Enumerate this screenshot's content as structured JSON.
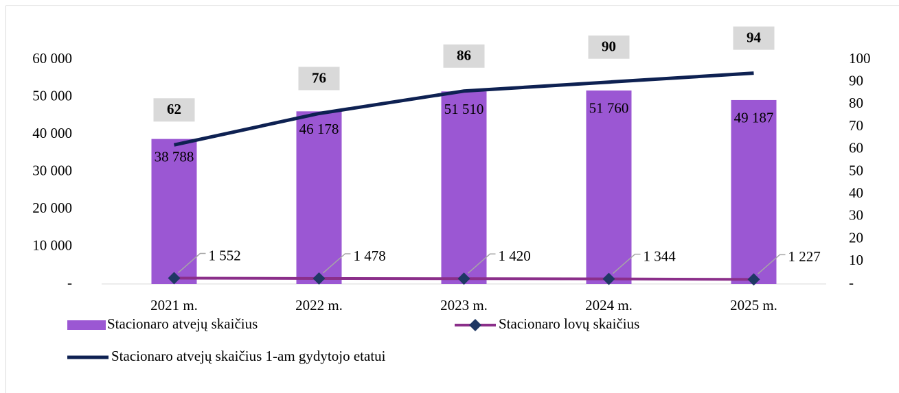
{
  "chart_data": {
    "type": "bar-line",
    "categories": [
      "2021 m.",
      "2022 m.",
      "2023 m.",
      "2024 m.",
      "2025 m."
    ],
    "series": [
      {
        "name": "Stacionaro atvejų skaičius",
        "type": "bar",
        "color": "#9b57d3",
        "values": [
          38788,
          46178,
          51510,
          51760,
          49187
        ],
        "value_labels": [
          "38 788",
          "46 178",
          "51 510",
          "51 760",
          "49 187"
        ]
      },
      {
        "name": "Stacionaro lovų skaičius",
        "type": "line",
        "color": "#8b2f8a",
        "marker_color": "#1f3864",
        "values": [
          1552,
          1478,
          1420,
          1344,
          1227
        ],
        "value_labels": [
          "1 552",
          "1 478",
          "1 420",
          "1 344",
          "1 227"
        ]
      },
      {
        "name": "Stacionaro atvejų skaičius 1-am gydytojo etatui",
        "type": "line",
        "axis": "y2",
        "color": "#0e2152",
        "values": [
          62,
          76,
          86,
          90,
          94
        ]
      }
    ],
    "ylim": [
      0,
      60000
    ],
    "yticks": [
      {
        "value": 0,
        "label": "-"
      },
      {
        "value": 10000,
        "label": "10 000"
      },
      {
        "value": 20000,
        "label": "20 000"
      },
      {
        "value": 30000,
        "label": "30 000"
      },
      {
        "value": 40000,
        "label": "40 000"
      },
      {
        "value": 50000,
        "label": "50 000"
      },
      {
        "value": 60000,
        "label": "60 000"
      }
    ],
    "y2lim": [
      0,
      100
    ],
    "y2ticks": [
      {
        "value": 0,
        "label": "-"
      },
      10,
      20,
      30,
      40,
      50,
      60,
      70,
      80,
      90,
      100
    ],
    "legend": "bottom"
  }
}
